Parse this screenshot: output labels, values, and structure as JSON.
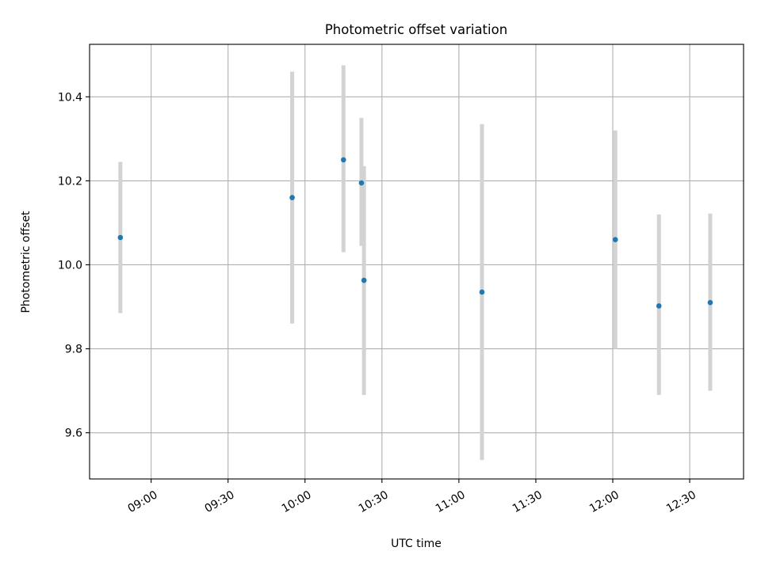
{
  "chart_data": {
    "type": "scatter",
    "title": "Photometric offset variation",
    "xlabel": "UTC time",
    "ylabel": "Photometric offset",
    "xlim": [
      "08:36",
      "12:51"
    ],
    "ylim": [
      9.49,
      10.525
    ],
    "grid": true,
    "x_ticks": [
      "09:00",
      "09:30",
      "10:00",
      "10:30",
      "11:00",
      "11:30",
      "12:00",
      "12:30"
    ],
    "y_ticks": [
      9.6,
      9.8,
      10.0,
      10.2,
      10.4
    ],
    "colors": {
      "point": "#1f77b4",
      "error_bar": "#d3d3d3"
    },
    "points": [
      {
        "x": "08:48",
        "y": 10.065,
        "ylow": 9.885,
        "yhigh": 10.245
      },
      {
        "x": "09:55",
        "y": 10.16,
        "ylow": 9.86,
        "yhigh": 10.46
      },
      {
        "x": "10:15",
        "y": 10.25,
        "ylow": 10.03,
        "yhigh": 10.475
      },
      {
        "x": "10:22",
        "y": 10.195,
        "ylow": 10.045,
        "yhigh": 10.35
      },
      {
        "x": "10:23",
        "y": 9.963,
        "ylow": 9.69,
        "yhigh": 10.235
      },
      {
        "x": "11:09",
        "y": 9.935,
        "ylow": 9.535,
        "yhigh": 10.335
      },
      {
        "x": "12:01",
        "y": 10.06,
        "ylow": 9.8,
        "yhigh": 10.32
      },
      {
        "x": "12:18",
        "y": 9.902,
        "ylow": 9.69,
        "yhigh": 10.12
      },
      {
        "x": "12:38",
        "y": 9.91,
        "ylow": 9.7,
        "yhigh": 10.122
      }
    ]
  }
}
